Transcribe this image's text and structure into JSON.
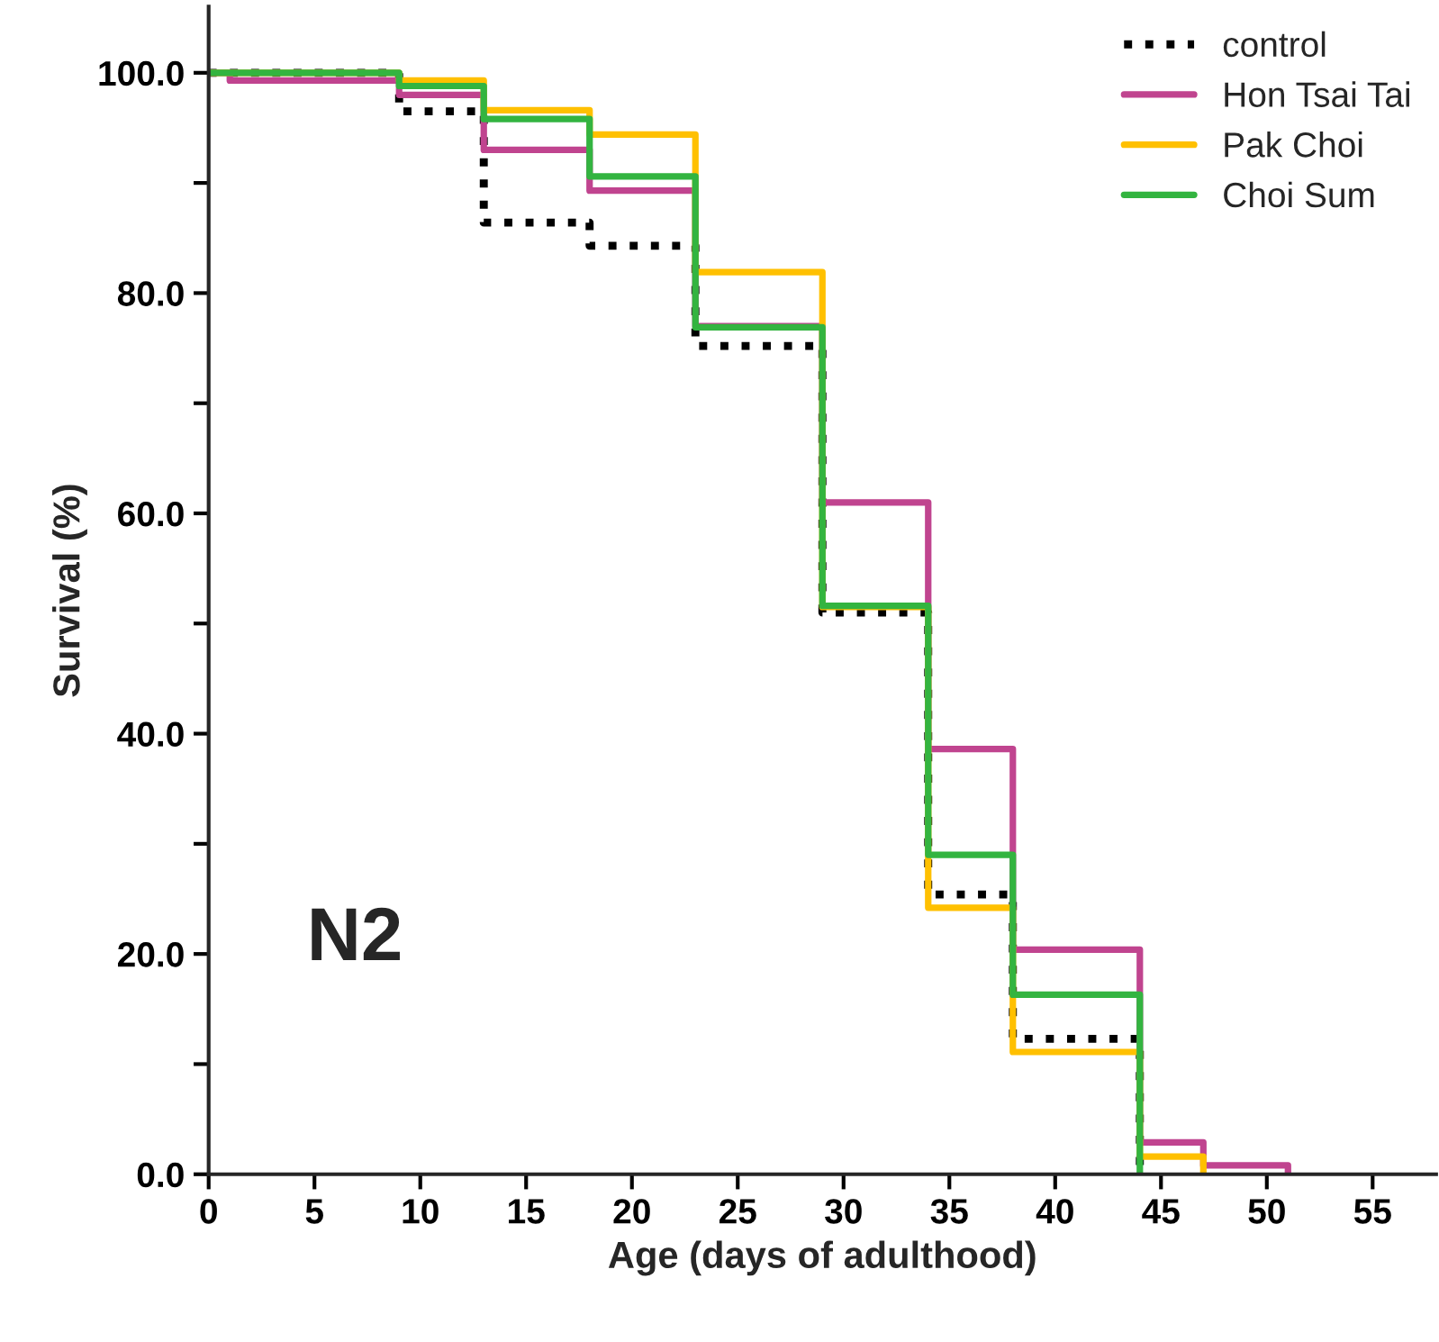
{
  "chart_data": {
    "type": "step",
    "xlabel": "Age (days of adulthood)",
    "ylabel": "Survival (%)",
    "annotations": [
      "N2"
    ],
    "xlim": [
      0,
      58
    ],
    "xticks": [
      0,
      5,
      10,
      15,
      20,
      25,
      30,
      35,
      40,
      45,
      50,
      55
    ],
    "ylim": [
      0,
      106
    ],
    "yticks": [
      {
        "value": 0,
        "label": "0.0"
      },
      {
        "value": 10,
        "label": null
      },
      {
        "value": 20,
        "label": "20.0"
      },
      {
        "value": 30,
        "label": null
      },
      {
        "value": 40,
        "label": "40.0"
      },
      {
        "value": 50,
        "label": null
      },
      {
        "value": 60,
        "label": "60.0"
      },
      {
        "value": 70,
        "label": null
      },
      {
        "value": 80,
        "label": "80.0"
      },
      {
        "value": 90,
        "label": null
      },
      {
        "value": 100,
        "label": "100.0"
      }
    ],
    "grid": false,
    "legend": "top right",
    "marker": "none",
    "series": [
      {
        "name": "control",
        "color": "#000000",
        "line_style": "dotted",
        "x": [
          0,
          9,
          13,
          18,
          23,
          29,
          34,
          38,
          44
        ],
        "values": [
          100,
          96.5,
          86.4,
          84.3,
          75.2,
          51,
          25.4,
          12.3,
          0
        ]
      },
      {
        "name": "Hon Tsai Tai",
        "color": "#c0448f",
        "line_style": "solid",
        "x": [
          0,
          1,
          9,
          13,
          18,
          23,
          29,
          34,
          38,
          44,
          47,
          51
        ],
        "values": [
          100,
          99.3,
          98,
          93,
          89.3,
          77,
          61,
          38.6,
          20.4,
          2.9,
          0.8,
          0
        ]
      },
      {
        "name": "Pak Choi",
        "color": "#ffc000",
        "line_style": "solid",
        "x": [
          0,
          9,
          13,
          18,
          23,
          29,
          34,
          38,
          44,
          47
        ],
        "values": [
          100,
          99.3,
          96.6,
          94.4,
          81.9,
          51.5,
          24.2,
          11.1,
          1.6,
          0
        ]
      },
      {
        "name": "Choi Sum",
        "color": "#33b440",
        "line_style": "solid",
        "x": [
          0,
          9,
          13,
          18,
          23,
          29,
          34,
          38,
          44
        ],
        "values": [
          100,
          98.8,
          95.8,
          90.6,
          76.9,
          51.6,
          29,
          16.3,
          0
        ]
      }
    ]
  }
}
